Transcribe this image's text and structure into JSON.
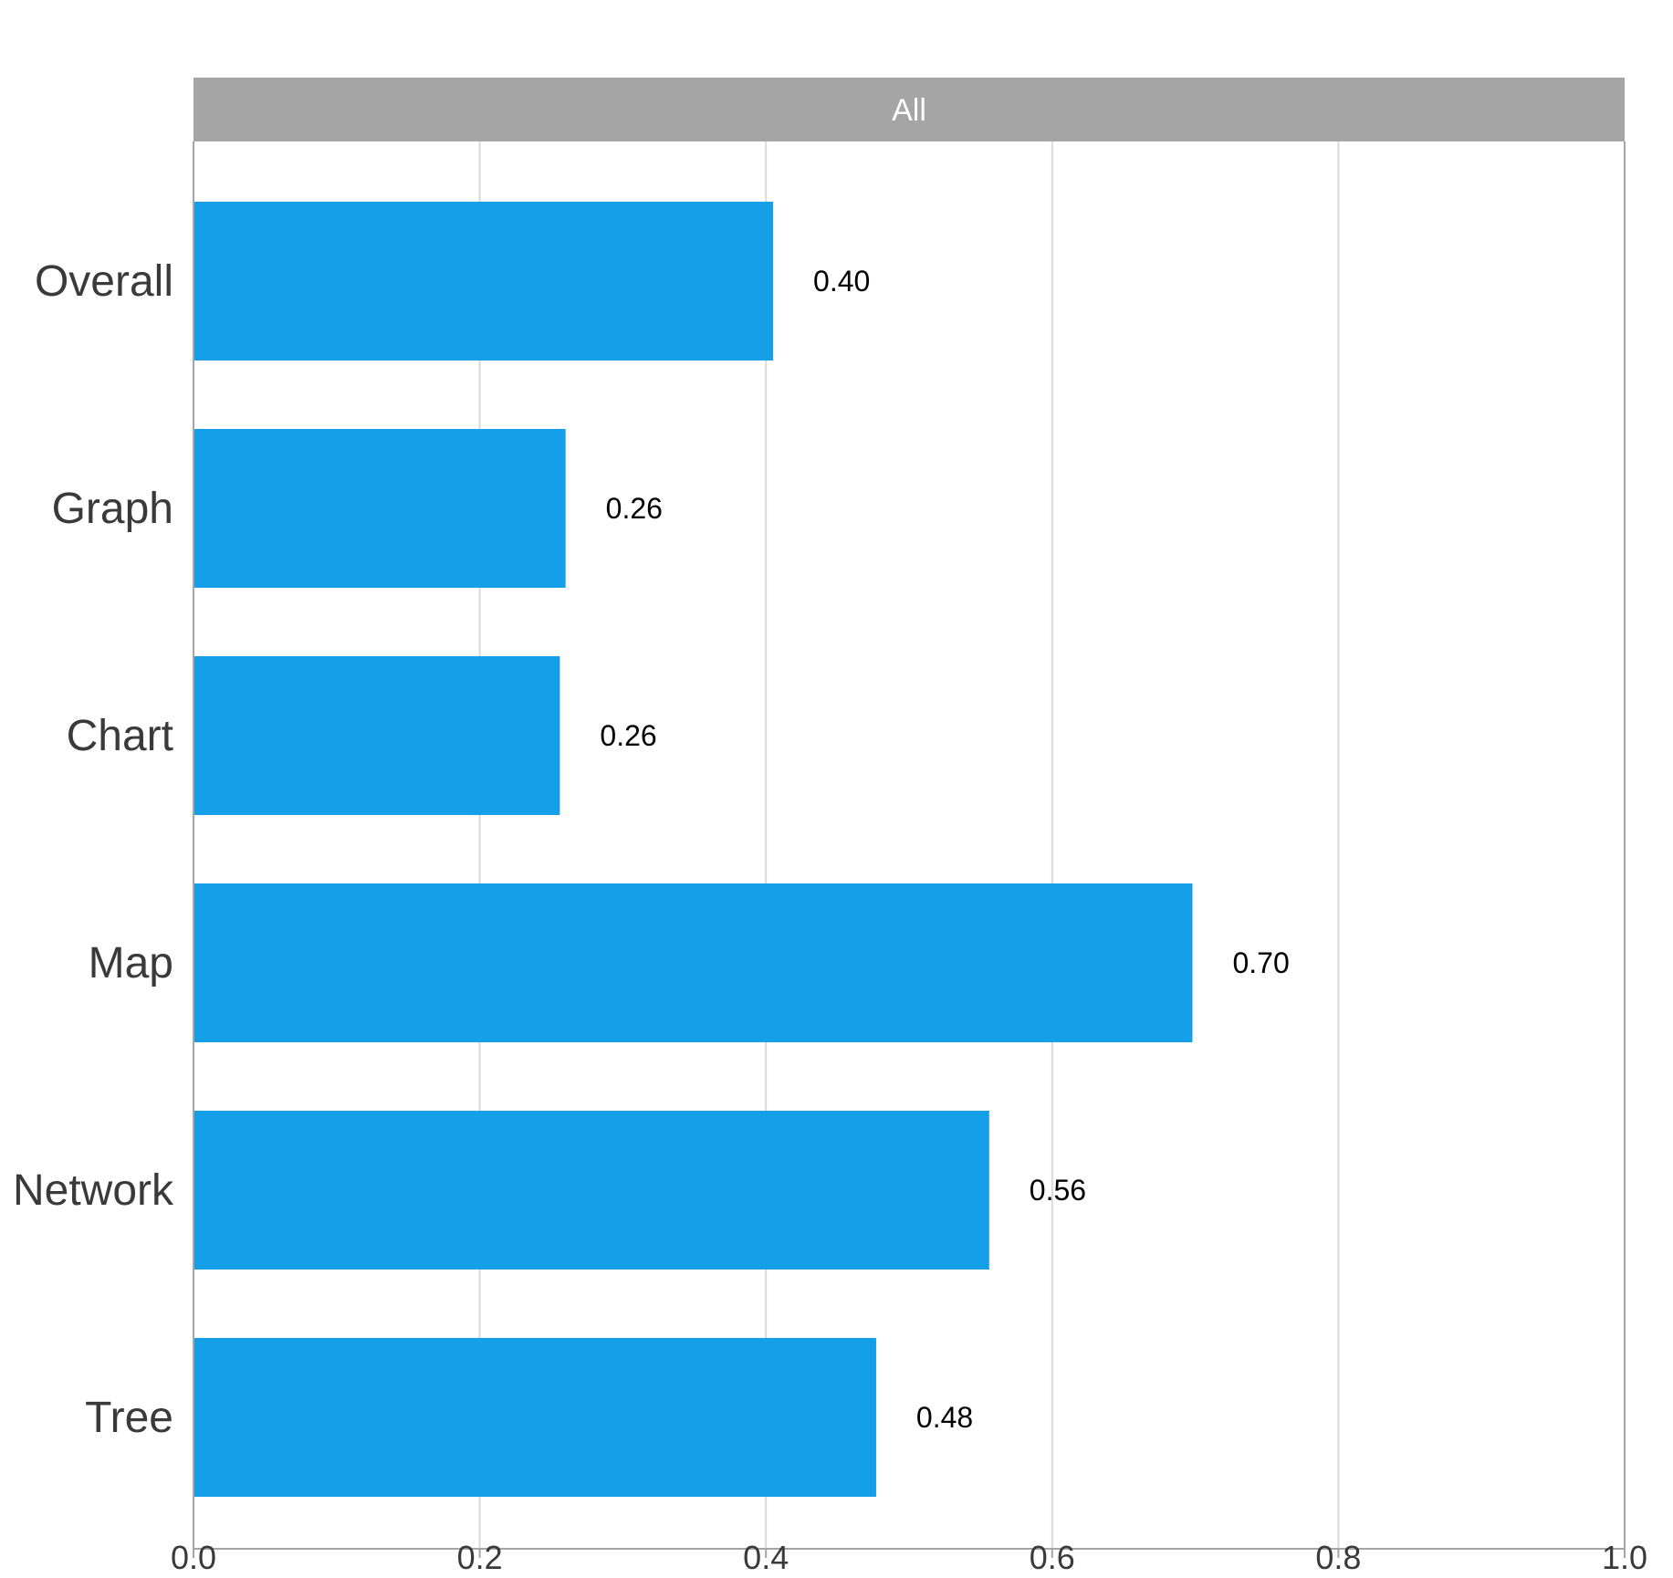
{
  "chart_data": {
    "type": "bar",
    "orientation": "horizontal",
    "facet_label": "All",
    "categories": [
      "Overall",
      "Graph",
      "Chart",
      "Map",
      "Network",
      "Tree"
    ],
    "values": [
      0.405,
      0.26,
      0.256,
      0.698,
      0.556,
      0.477
    ],
    "value_labels": [
      "0.40",
      "0.26",
      "0.26",
      "0.70",
      "0.56",
      "0.48"
    ],
    "xlim": [
      0.0,
      1.0
    ],
    "x_ticks": [
      0.0,
      0.2,
      0.4,
      0.6,
      0.8,
      1.0
    ],
    "x_tick_labels": [
      "0.0",
      "0.2",
      "0.4",
      "0.6",
      "0.8",
      "1.0"
    ],
    "xlabel": "",
    "ylabel": "",
    "grid": "vertical",
    "colors": {
      "bar": "#159fe9",
      "facet_strip": "#a5a5a5",
      "grid": "#d9d9d9",
      "axis": "#a5a5a5"
    }
  }
}
